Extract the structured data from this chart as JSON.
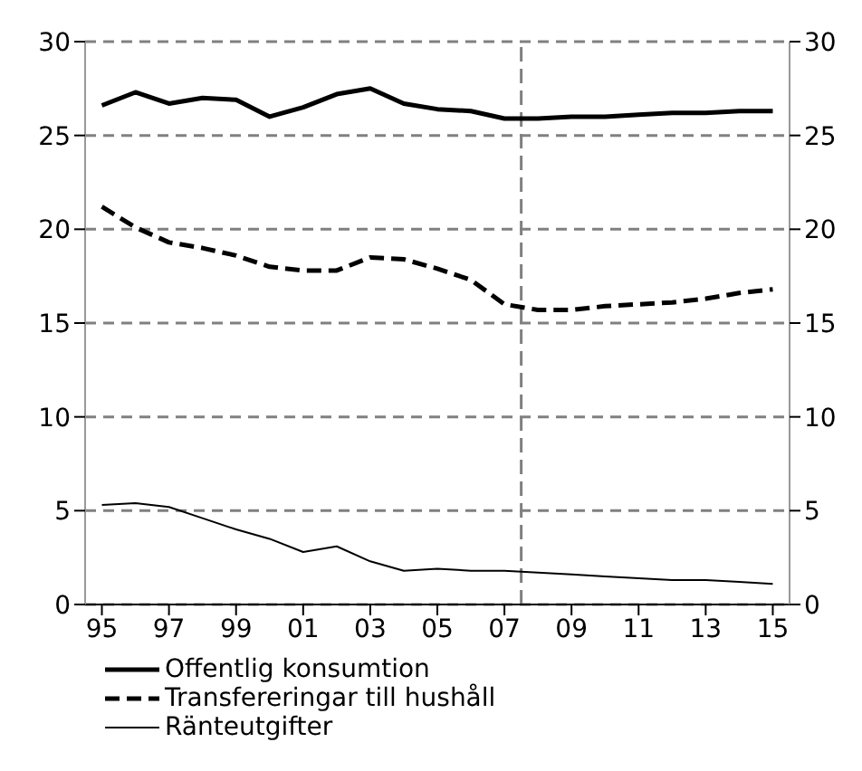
{
  "chart_data": {
    "type": "line",
    "x": [
      1995,
      1996,
      1997,
      1998,
      1999,
      2000,
      2001,
      2002,
      2003,
      2004,
      2005,
      2006,
      2007,
      2008,
      2009,
      2010,
      2011,
      2012,
      2013,
      2014,
      2015
    ],
    "series": [
      {
        "name": "Offentlig konsumtion",
        "color": "#000000",
        "line_style": "solid",
        "values": [
          26.6,
          27.3,
          26.7,
          27.0,
          26.9,
          26.0,
          26.5,
          27.2,
          27.5,
          26.7,
          26.4,
          26.3,
          25.9,
          25.9,
          26.0,
          26.0,
          26.1,
          26.2,
          26.2,
          26.3,
          26.3
        ]
      },
      {
        "name": "Transfereringar till hushåll",
        "color": "#000000",
        "line_style": "dashed",
        "values": [
          21.2,
          20.1,
          19.3,
          19.0,
          18.6,
          18.0,
          17.8,
          17.8,
          18.5,
          18.4,
          17.9,
          17.3,
          16.0,
          15.7,
          15.7,
          15.9,
          16.0,
          16.1,
          16.3,
          16.6,
          16.8
        ]
      },
      {
        "name": "Ränteutgifter",
        "color": "#000000",
        "line_style": "solid",
        "values": [
          5.3,
          5.4,
          5.2,
          4.6,
          4.0,
          3.5,
          2.8,
          3.1,
          2.3,
          1.8,
          1.9,
          1.8,
          1.8,
          1.7,
          1.6,
          1.5,
          1.4,
          1.3,
          1.3,
          1.2,
          1.1
        ]
      }
    ],
    "xlim": [
      1994.5,
      2015.5
    ],
    "xticks": [
      {
        "value": 1995,
        "label": "95"
      },
      {
        "value": 1997,
        "label": "97"
      },
      {
        "value": 1999,
        "label": "99"
      },
      {
        "value": 2001,
        "label": "01"
      },
      {
        "value": 2003,
        "label": "03"
      },
      {
        "value": 2005,
        "label": "05"
      },
      {
        "value": 2007,
        "label": "07"
      },
      {
        "value": 2009,
        "label": "09"
      },
      {
        "value": 2011,
        "label": "11"
      },
      {
        "value": 2013,
        "label": "13"
      },
      {
        "value": 2015,
        "label": "15"
      }
    ],
    "ylim": [
      0,
      30
    ],
    "yticks": [
      0,
      5,
      10,
      15,
      20,
      25,
      30
    ],
    "y2lim": [
      0,
      30
    ],
    "y2ticks": [
      0,
      5,
      10,
      15,
      20,
      25,
      30
    ],
    "ref_lines": [
      {
        "axis": "x",
        "value": 2007.5,
        "color": "#808080",
        "line_style": "dashed"
      }
    ],
    "grid": "y",
    "legend": "bottom left",
    "marker": "none"
  }
}
